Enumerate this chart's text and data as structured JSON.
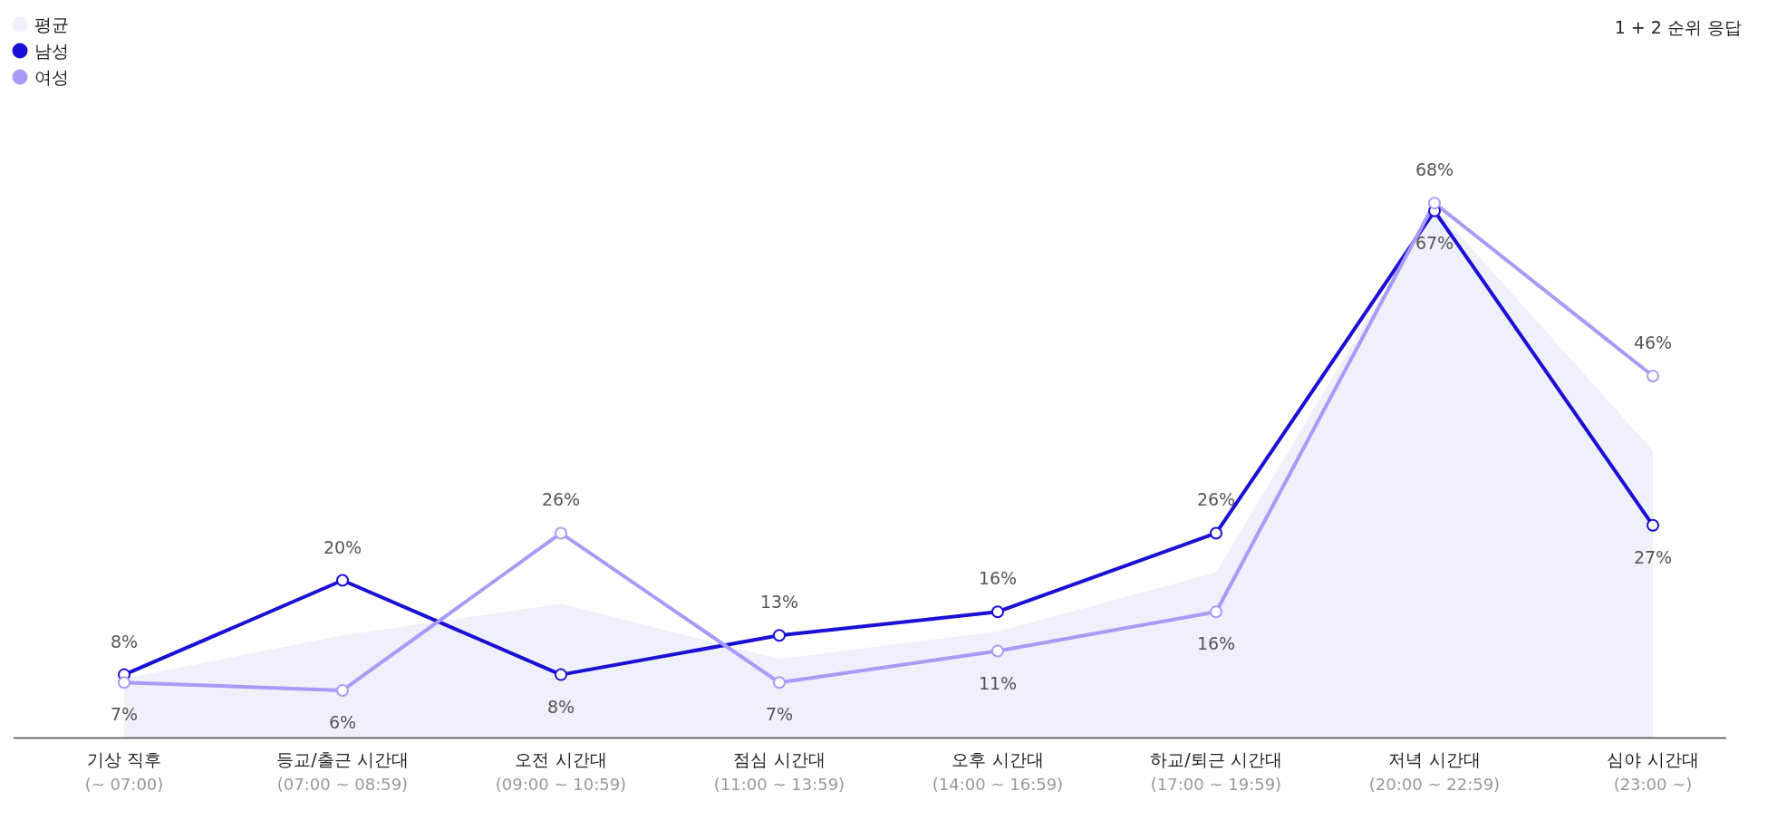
{
  "chart_data": {
    "type": "line",
    "annotations": [
      "1 + 2 순위 응답"
    ],
    "categories": [
      "기상 직후\n(~ 07:00)",
      "등교/출근 시간대\n(07:00 ~ 08:59)",
      "오전 시간대\n(09:00 ~ 10:59)",
      "점심 시간대\n(11:00 ~ 13:59)",
      "오후 시간대\n(14:00 ~ 16:59)",
      "하교/퇴근 시간대\n(17:00 ~ 19:59)",
      "저녁 시간대\n(20:00 ~ 22:59)",
      "심야 시간대\n(23:00 ~)"
    ],
    "series": [
      {
        "name": "평균",
        "type": "area",
        "color": "#eef0fa",
        "values": [
          7.5,
          13,
          17,
          10,
          13.5,
          21,
          67.5,
          36.5
        ]
      },
      {
        "name": "남성",
        "color": "#1a0fd4",
        "marker": "circle",
        "values": [
          8,
          20,
          8,
          13,
          16,
          26,
          67,
          27
        ],
        "value_labels": [
          "8%",
          "20%",
          "8%",
          "13%",
          "16%",
          "26%",
          "67%",
          "27%"
        ]
      },
      {
        "name": "여성",
        "color": "#a69cf7",
        "marker": "circle",
        "values": [
          7,
          6,
          26,
          7,
          11,
          16,
          68,
          46
        ],
        "value_labels": [
          "7%",
          "6%",
          "26%",
          "7%",
          "11%",
          "16%",
          "68%",
          "46%"
        ]
      }
    ],
    "legend": "top left"
  }
}
